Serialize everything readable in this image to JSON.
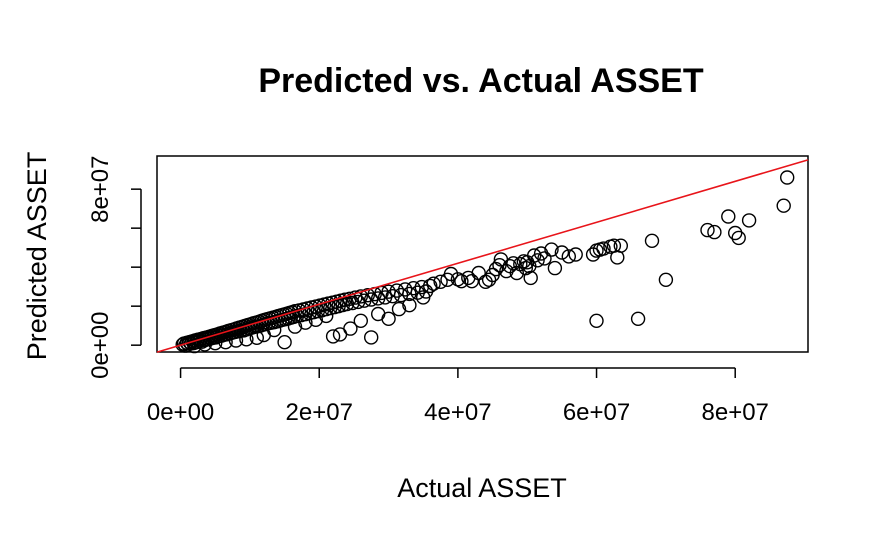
{
  "chart_data": {
    "type": "scatter",
    "title": "Predicted vs. Actual ASSET",
    "xlabel": "Actual ASSET",
    "ylabel": "Predicted ASSET",
    "xlim": [
      -3400000,
      90500000
    ],
    "ylim": [
      -3500000,
      97000000
    ],
    "x_ticks": [
      0,
      20000000,
      40000000,
      60000000,
      80000000
    ],
    "x_tick_labels": [
      "0e+00",
      "2e+07",
      "4e+07",
      "6e+07",
      "8e+07"
    ],
    "y_ticks": [
      0,
      20000000,
      40000000,
      60000000,
      80000000
    ],
    "y_tick_labels": [
      "0e+00",
      "",
      "",
      "",
      "8e+07"
    ],
    "fit_line": {
      "intercept": 0,
      "slope": 1.05
    },
    "grid": false,
    "series": [
      {
        "points": [
          [
            300000,
            300000
          ],
          [
            500000,
            800000
          ],
          [
            700000,
            -200000
          ],
          [
            900000,
            1200000
          ],
          [
            1100000,
            400000
          ],
          [
            1300000,
            1600000
          ],
          [
            1500000,
            900000
          ],
          [
            1700000,
            2000000
          ],
          [
            1900000,
            1100000
          ],
          [
            2100000,
            2400000
          ],
          [
            2300000,
            1500000
          ],
          [
            2500000,
            2800000
          ],
          [
            2700000,
            2200000
          ],
          [
            2900000,
            3100000
          ],
          [
            3100000,
            1800000
          ],
          [
            3300000,
            3600000
          ],
          [
            3500000,
            2600000
          ],
          [
            3700000,
            3900000
          ],
          [
            3900000,
            3000000
          ],
          [
            4100000,
            4300000
          ],
          [
            4300000,
            3400000
          ],
          [
            4500000,
            4700000
          ],
          [
            4700000,
            3800000
          ],
          [
            4900000,
            5100000
          ],
          [
            5100000,
            4000000
          ],
          [
            5300000,
            5500000
          ],
          [
            5500000,
            4600000
          ],
          [
            5700000,
            6000000
          ],
          [
            5900000,
            4900000
          ],
          [
            6100000,
            6400000
          ],
          [
            6300000,
            5300000
          ],
          [
            6500000,
            6800000
          ],
          [
            6700000,
            5600000
          ],
          [
            6900000,
            7300000
          ],
          [
            7100000,
            6000000
          ],
          [
            7300000,
            7700000
          ],
          [
            7500000,
            6500000
          ],
          [
            7700000,
            8100000
          ],
          [
            7900000,
            6800000
          ],
          [
            8100000,
            8600000
          ],
          [
            8300000,
            7100000
          ],
          [
            8500000,
            9000000
          ],
          [
            8700000,
            7400000
          ],
          [
            8900000,
            9400000
          ],
          [
            9100000,
            7600000
          ],
          [
            9300000,
            9900000
          ],
          [
            9500000,
            8100000
          ],
          [
            9700000,
            10300000
          ],
          [
            9900000,
            8600000
          ],
          [
            10100000,
            10700000
          ],
          [
            10300000,
            9000000
          ],
          [
            10500000,
            11200000
          ],
          [
            10700000,
            9400000
          ],
          [
            10900000,
            11600000
          ],
          [
            11100000,
            9700000
          ],
          [
            11300000,
            12000000
          ],
          [
            11500000,
            10000000
          ],
          [
            11700000,
            12500000
          ],
          [
            11900000,
            10500000
          ],
          [
            12100000,
            12900000
          ],
          [
            12300000,
            10800000
          ],
          [
            12500000,
            13300000
          ],
          [
            12700000,
            11300000
          ],
          [
            12900000,
            13700000
          ],
          [
            13100000,
            11500000
          ],
          [
            13300000,
            14100000
          ],
          [
            13500000,
            11800000
          ],
          [
            13700000,
            14500000
          ],
          [
            13900000,
            12200000
          ],
          [
            14100000,
            14900000
          ],
          [
            14300000,
            12600000
          ],
          [
            14500000,
            15300000
          ],
          [
            14700000,
            13000000
          ],
          [
            14900000,
            15700000
          ],
          [
            15100000,
            13300000
          ],
          [
            15300000,
            16100000
          ],
          [
            15500000,
            13700000
          ],
          [
            15700000,
            16500000
          ],
          [
            15900000,
            14100000
          ],
          [
            16100000,
            16900000
          ],
          [
            16300000,
            14500000
          ],
          [
            16500000,
            17400000
          ],
          [
            16800000,
            15000000
          ],
          [
            17100000,
            17800000
          ],
          [
            17400000,
            15400000
          ],
          [
            17700000,
            18300000
          ],
          [
            18000000,
            15900000
          ],
          [
            18300000,
            18800000
          ],
          [
            18600000,
            16400000
          ],
          [
            18900000,
            19300000
          ],
          [
            19200000,
            16900000
          ],
          [
            19500000,
            19800000
          ],
          [
            19800000,
            17400000
          ],
          [
            20100000,
            20300000
          ],
          [
            20400000,
            17900000
          ],
          [
            20700000,
            20800000
          ],
          [
            21000000,
            18500000
          ],
          [
            21300000,
            21300000
          ],
          [
            21600000,
            19000000
          ],
          [
            21900000,
            21800000
          ],
          [
            22200000,
            19500000
          ],
          [
            22500000,
            22300000
          ],
          [
            22800000,
            20000000
          ],
          [
            23100000,
            22800000
          ],
          [
            23400000,
            20600000
          ],
          [
            23700000,
            23300000
          ],
          [
            24000000,
            21100000
          ],
          [
            24400000,
            23800000
          ],
          [
            24800000,
            21600000
          ],
          [
            25200000,
            24400000
          ],
          [
            25600000,
            22200000
          ],
          [
            26000000,
            25000000
          ],
          [
            26500000,
            22800000
          ],
          [
            27000000,
            25600000
          ],
          [
            27500000,
            23400000
          ],
          [
            28000000,
            26200000
          ],
          [
            28500000,
            24000000
          ],
          [
            29000000,
            26800000
          ],
          [
            29500000,
            24500000
          ],
          [
            30000000,
            27400000
          ],
          [
            30600000,
            25100000
          ],
          [
            31200000,
            28000000
          ],
          [
            31800000,
            25700000
          ],
          [
            32400000,
            28600000
          ],
          [
            33000000,
            26300000
          ],
          [
            33600000,
            29200000
          ],
          [
            34200000,
            26900000
          ],
          [
            34800000,
            29800000
          ],
          [
            35400000,
            27500000
          ],
          [
            36000000,
            30400000
          ],
          [
            2000000,
            -500000
          ],
          [
            3500000,
            400000
          ],
          [
            5000000,
            1000000
          ],
          [
            6500000,
            1500000
          ],
          [
            8000000,
            2400000
          ],
          [
            9500000,
            3000000
          ],
          [
            11000000,
            3800000
          ],
          [
            12000000,
            5200000
          ],
          [
            13500000,
            7800000
          ],
          [
            15000000,
            1500000
          ],
          [
            16500000,
            9500000
          ],
          [
            18000000,
            11500000
          ],
          [
            19500000,
            13000000
          ],
          [
            21000000,
            15000000
          ],
          [
            22000000,
            4500000
          ],
          [
            23000000,
            5500000
          ],
          [
            24500000,
            8500000
          ],
          [
            26000000,
            12500000
          ],
          [
            27500000,
            4000000
          ],
          [
            28500000,
            16000000
          ],
          [
            30000000,
            13500000
          ],
          [
            31500000,
            18500000
          ],
          [
            33000000,
            20500000
          ],
          [
            35000000,
            24500000
          ],
          [
            36500000,
            31500000
          ],
          [
            37500000,
            32500000
          ],
          [
            38500000,
            33500000
          ],
          [
            39000000,
            36500000
          ],
          [
            40000000,
            33800000
          ],
          [
            40500000,
            32800000
          ],
          [
            41500000,
            34500000
          ],
          [
            42000000,
            32800000
          ],
          [
            43000000,
            37000000
          ],
          [
            44000000,
            32500000
          ],
          [
            44500000,
            33500000
          ],
          [
            45000000,
            36000000
          ],
          [
            45500000,
            39000000
          ],
          [
            46000000,
            41000000
          ],
          [
            46200000,
            44000000
          ],
          [
            47000000,
            38000000
          ],
          [
            47500000,
            40500000
          ],
          [
            48000000,
            42000000
          ],
          [
            48500000,
            37000000
          ],
          [
            49000000,
            41500000
          ],
          [
            49500000,
            43000000
          ],
          [
            49800000,
            39500000
          ],
          [
            50000000,
            42500000
          ],
          [
            50300000,
            40500000
          ],
          [
            50500000,
            34500000
          ],
          [
            51000000,
            46000000
          ],
          [
            51500000,
            43500000
          ],
          [
            52000000,
            47000000
          ],
          [
            52500000,
            44500000
          ],
          [
            53500000,
            49000000
          ],
          [
            54000000,
            39500000
          ],
          [
            55000000,
            47500000
          ],
          [
            56000000,
            45500000
          ],
          [
            57000000,
            46500000
          ],
          [
            59500000,
            46500000
          ],
          [
            60000000,
            48500000
          ],
          [
            60500000,
            49000000
          ],
          [
            61000000,
            49500000
          ],
          [
            62000000,
            50500000
          ],
          [
            62500000,
            51000000
          ],
          [
            63000000,
            45000000
          ],
          [
            63500000,
            51000000
          ],
          [
            66000000,
            13500000
          ],
          [
            68000000,
            53500000
          ],
          [
            70000000,
            33500000
          ],
          [
            76000000,
            59000000
          ],
          [
            77000000,
            58000000
          ],
          [
            79000000,
            66000000
          ],
          [
            80000000,
            57500000
          ],
          [
            80500000,
            55000000
          ],
          [
            82000000,
            64000000
          ],
          [
            87000000,
            71500000
          ],
          [
            87500000,
            86000000
          ],
          [
            60000000,
            12500000
          ]
        ]
      }
    ]
  }
}
